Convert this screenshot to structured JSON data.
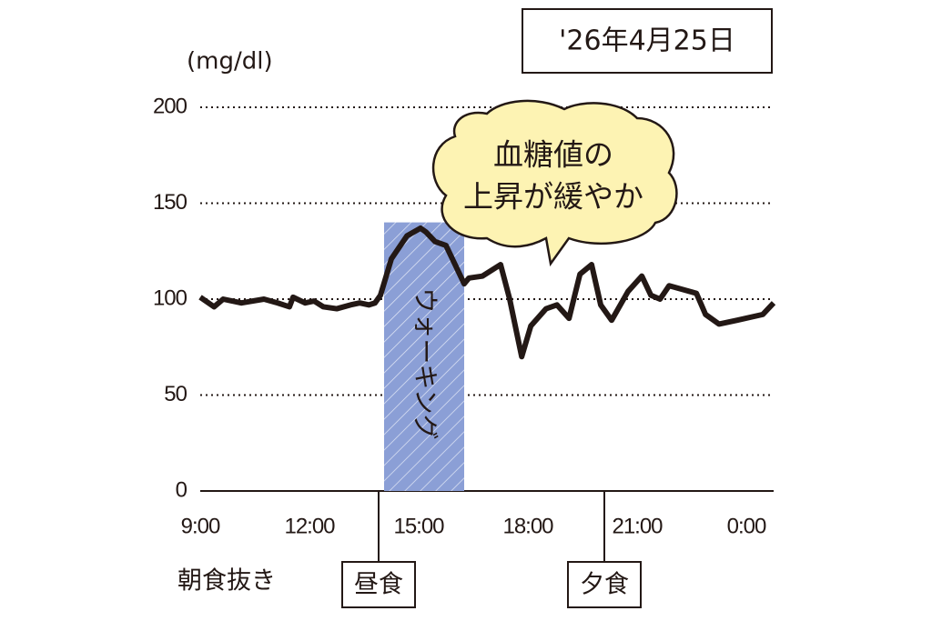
{
  "chart_data": {
    "type": "line",
    "date": "'26年4月25日",
    "unit": "(mg/dl)",
    "callout": [
      "血糖値の",
      "上昇が緩やか"
    ],
    "walking": {
      "label": "ウォーキング",
      "start": 14.05,
      "end": 16.25
    },
    "breakfast_note": "朝食抜き",
    "meals": [
      {
        "label": "昼食",
        "x": 13.9
      },
      {
        "label": "夕食",
        "x": 20.1
      }
    ],
    "x": [
      9,
      9.38,
      9.63,
      10.13,
      10.75,
      11.13,
      11.45,
      11.55,
      11.88,
      12.13,
      12.38,
      12.75,
      13.13,
      13.38,
      13.63,
      13.8,
      13.95,
      14.25,
      14.68,
      15.05,
      15.2,
      15.45,
      15.75,
      16,
      16.25,
      16.38,
      16.75,
      17.25,
      17.5,
      17.83,
      18.08,
      18.5,
      18.8,
      19.13,
      19.43,
      19.75,
      20,
      20.3,
      20.75,
      21.13,
      21.38,
      21.63,
      21.88,
      22.63,
      22.88,
      23.25,
      23.75,
      24.45,
      24.75
    ],
    "values": [
      101,
      96,
      100,
      98,
      100,
      98,
      96,
      101,
      98,
      99,
      96,
      95,
      97,
      98,
      97,
      98,
      102,
      121,
      133,
      137,
      135,
      130,
      128,
      118,
      108,
      111,
      112,
      118,
      100,
      70,
      86,
      95,
      97,
      90,
      113,
      118,
      97,
      89,
      104,
      112,
      102,
      100,
      107,
      103,
      92,
      87,
      89,
      92,
      98
    ],
    "color": "#231815",
    "xlim": [
      9,
      24.75
    ],
    "xticks": [
      {
        "value": 9,
        "label": "9:00"
      },
      {
        "value": 12,
        "label": "12:00"
      },
      {
        "value": 15,
        "label": "15:00"
      },
      {
        "value": 18,
        "label": "18:00"
      },
      {
        "value": 21,
        "label": "21:00"
      },
      {
        "value": 24,
        "label": "0:00"
      }
    ],
    "ylim": [
      0,
      200
    ],
    "yticks": [
      0,
      50,
      100,
      150,
      200
    ],
    "grid": true
  }
}
